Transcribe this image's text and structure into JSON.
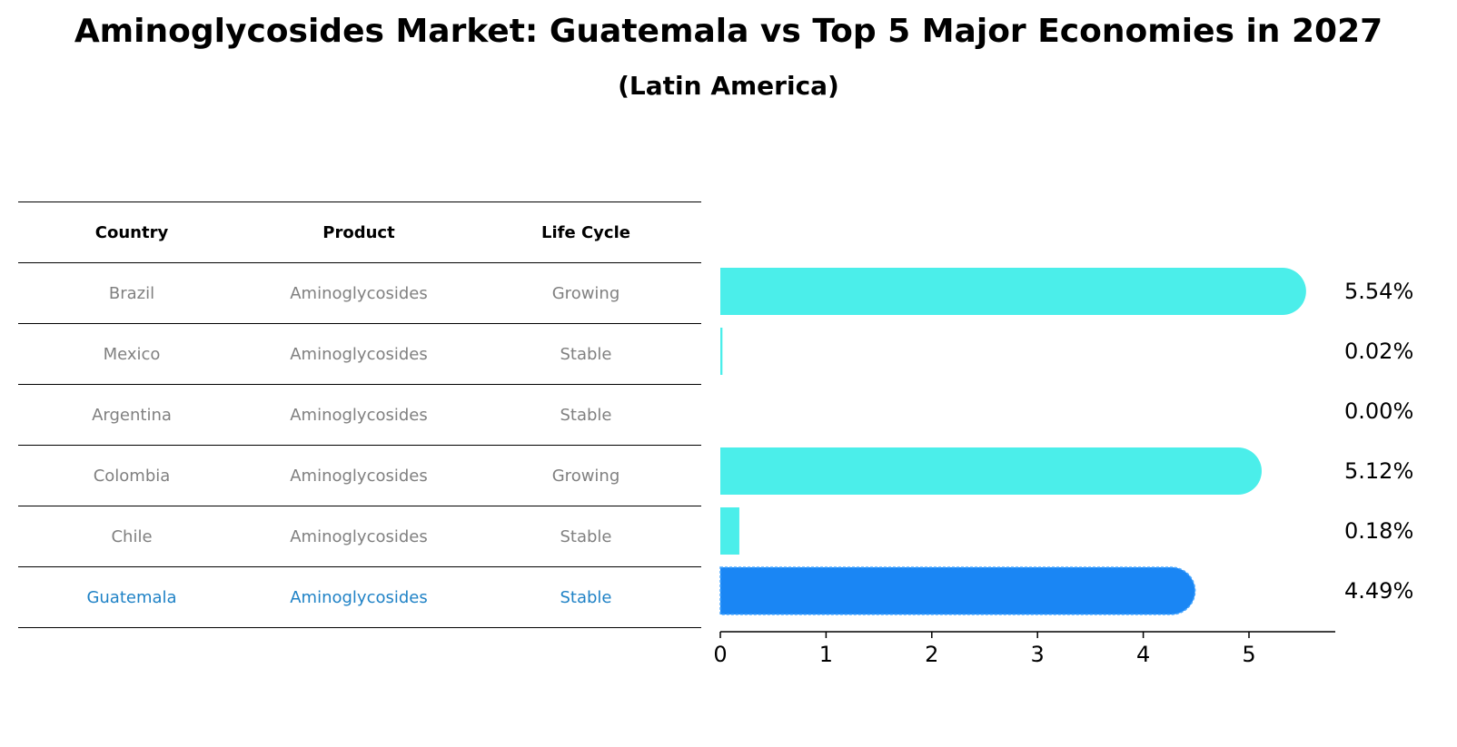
{
  "title": "Aminoglycosides Market: Guatemala vs Top 5 Major Economies in 2027",
  "subtitle": "(Latin America)",
  "table": {
    "headers": [
      "Country",
      "Product",
      "Life Cycle"
    ],
    "rows": [
      [
        "Brazil",
        "Aminoglycosides",
        "Growing"
      ],
      [
        "Mexico",
        "Aminoglycosides",
        "Stable"
      ],
      [
        "Argentina",
        "Aminoglycosides",
        "Stable"
      ],
      [
        "Colombia",
        "Aminoglycosides",
        "Growing"
      ],
      [
        "Chile",
        "Aminoglycosides",
        "Stable"
      ],
      [
        "Guatemala",
        "Aminoglycosides",
        "Stable"
      ]
    ],
    "highlight_row": 5
  },
  "chart_data": {
    "type": "bar",
    "orientation": "horizontal",
    "categories": [
      "Brazil",
      "Mexico",
      "Argentina",
      "Colombia",
      "Chile",
      "Guatemala"
    ],
    "values": [
      5.54,
      0.02,
      0.0,
      5.12,
      0.18,
      4.49
    ],
    "value_labels": [
      "5.54%",
      "0.02%",
      "0.00%",
      "5.12%",
      "0.18%",
      "4.49%"
    ],
    "xlim": [
      0,
      5.8
    ],
    "xticks": [
      0,
      1,
      2,
      3,
      4,
      5
    ],
    "grid": false,
    "colors": {
      "default": "#4beeea",
      "highlight": "#1a86f4"
    },
    "highlight_index": 5
  }
}
